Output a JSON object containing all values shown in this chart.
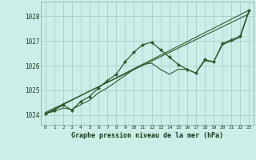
{
  "title": "Graphe pression niveau de la mer (hPa)",
  "bg_color": "#cceee8",
  "grid_color": "#aad4ce",
  "line_color": "#2d5a2d",
  "marker_color": "#2d5a2d",
  "x_ticks": [
    0,
    1,
    2,
    3,
    4,
    5,
    6,
    7,
    8,
    9,
    10,
    11,
    12,
    13,
    14,
    15,
    16,
    17,
    18,
    19,
    20,
    21,
    22,
    23
  ],
  "y_ticks": [
    1024,
    1025,
    1026,
    1027,
    1028
  ],
  "ylim": [
    1023.6,
    1028.6
  ],
  "xlim": [
    -0.5,
    23.5
  ],
  "main_line": {
    "x": [
      0,
      1,
      2,
      3,
      4,
      5,
      6,
      7,
      8,
      9,
      10,
      11,
      12,
      13,
      14,
      15,
      16,
      17,
      18,
      19,
      20,
      21,
      22,
      23
    ],
    "y": [
      1024.05,
      1024.2,
      1024.4,
      1024.2,
      1024.55,
      1024.75,
      1025.1,
      1025.4,
      1025.65,
      1026.15,
      1026.55,
      1026.85,
      1026.95,
      1026.65,
      1026.35,
      1026.05,
      1025.85,
      1025.7,
      1026.25,
      1026.15,
      1026.9,
      1027.05,
      1027.2,
      1028.25
    ]
  },
  "line_straight1": {
    "x": [
      0,
      23
    ],
    "y": [
      1024.05,
      1028.25
    ]
  },
  "line_straight2": {
    "x": [
      0,
      23
    ],
    "y": [
      1024.1,
      1028.1
    ]
  },
  "line_curved": {
    "x": [
      0,
      1,
      2,
      3,
      4,
      5,
      6,
      7,
      8,
      9,
      10,
      11,
      12,
      13,
      14,
      15,
      16,
      17,
      18,
      19,
      20,
      21,
      22,
      23
    ],
    "y": [
      1024.05,
      1024.15,
      1024.28,
      1024.22,
      1024.42,
      1024.6,
      1024.9,
      1025.1,
      1025.35,
      1025.6,
      1025.85,
      1026.05,
      1026.1,
      1025.85,
      1025.65,
      1025.85,
      1025.85,
      1025.7,
      1026.2,
      1026.15,
      1026.85,
      1027.0,
      1027.15,
      1028.2
    ]
  }
}
